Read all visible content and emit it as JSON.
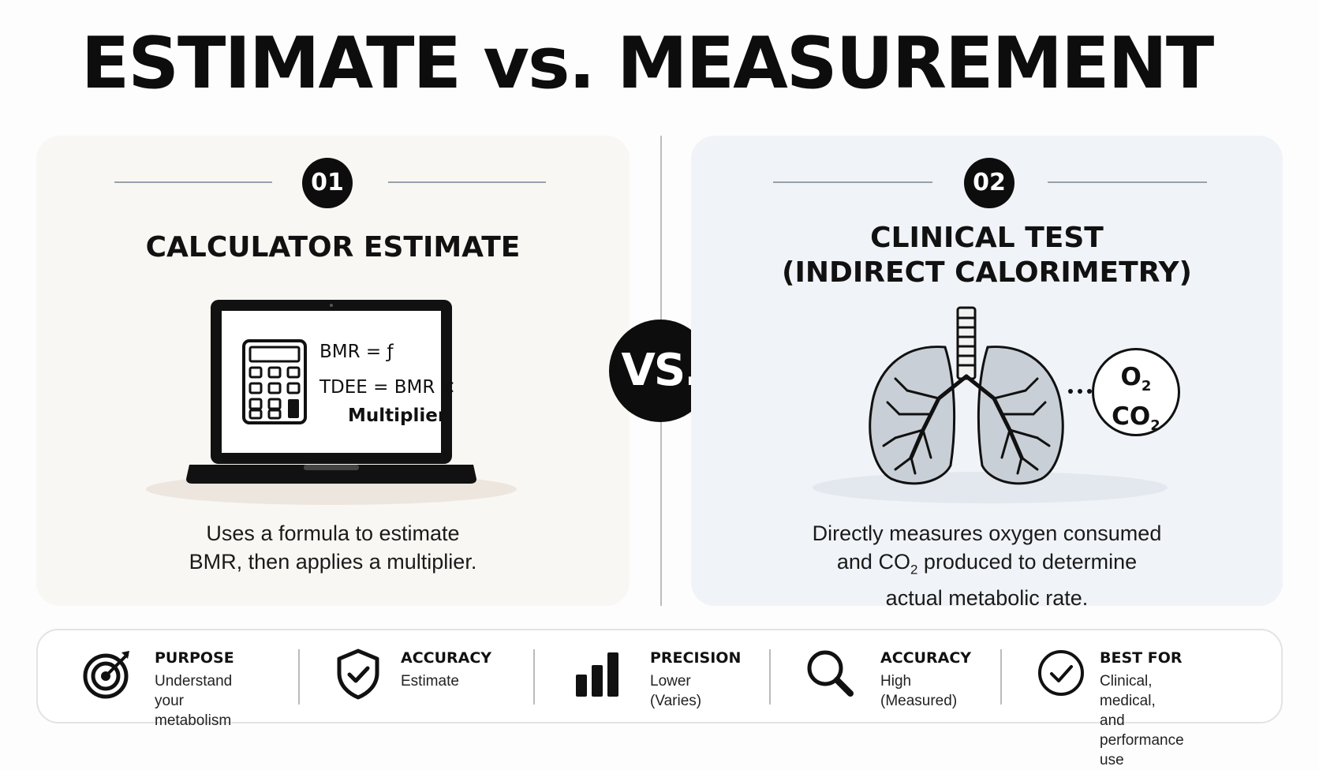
{
  "title": "ESTIMATE vs. MEASUREMENT",
  "vs_label": "VS.",
  "left_panel": {
    "number": "01",
    "title": "CALCULATOR ESTIMATE",
    "formula_line1": "BMR = ƒ",
    "formula_line2": "TDEE = BMR ×",
    "formula_line3": "Multiplier",
    "description_line1": "Uses a formula to estimate",
    "description_line2": "BMR, then applies a multiplier."
  },
  "right_panel": {
    "number": "02",
    "title_line1": "CLINICAL TEST",
    "title_line2": "(INDIRECT CALORIMETRY)",
    "gas_o": "O",
    "gas_co": "CO",
    "gas_sub": "2",
    "description_line1": "Directly measures oxygen consumed",
    "description_line2_a": "and CO",
    "description_line2_sub": "2",
    "description_line2_b": " produced to determine",
    "description_line3": "actual metabolic rate."
  },
  "metrics": [
    {
      "label": "PURPOSE",
      "value": "Understand your\nmetabolism",
      "icon": "target-icon"
    },
    {
      "label": "ACCURACY",
      "value": "Estimate",
      "icon": "shield-check-icon"
    },
    {
      "label": "PRECISION",
      "value": "Lower\n(Varies)",
      "icon": "bar-chart-icon"
    },
    {
      "label": "ACCURACY",
      "value": "High\n(Measured)",
      "icon": "magnifier-icon"
    },
    {
      "label": "BEST FOR",
      "value": "Clinical, medical,\nand performance use",
      "icon": "check-circle-icon"
    }
  ]
}
